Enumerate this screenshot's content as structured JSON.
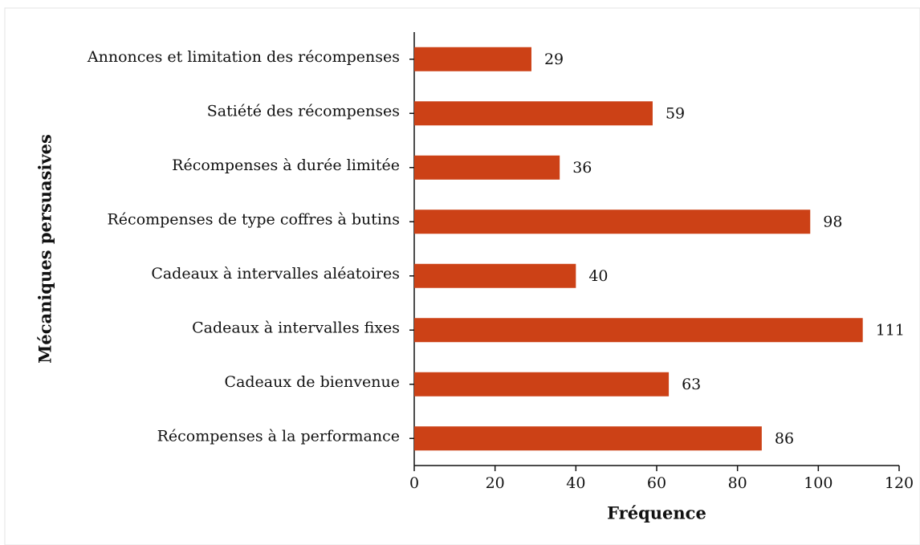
{
  "chart_data": {
    "type": "bar",
    "orientation": "horizontal",
    "xlabel": "Fréquence",
    "ylabel": "Mécaniques persuasives",
    "categories": [
      "Annonces et limitation des récompenses",
      "Satiété des récompenses",
      "Récompenses à durée limitée",
      "Récompenses de type coffres à butins",
      "Cadeaux à intervalles aléatoires",
      "Cadeaux à intervalles fixes",
      "Cadeaux de bienvenue",
      "Récompenses à la performance"
    ],
    "values": [
      29,
      59,
      36,
      98,
      40,
      111,
      63,
      86
    ],
    "color": "#cc4116",
    "xlim": [
      0,
      120
    ],
    "xticks": [
      0,
      20,
      40,
      60,
      80,
      100,
      120
    ],
    "grid": false
  }
}
